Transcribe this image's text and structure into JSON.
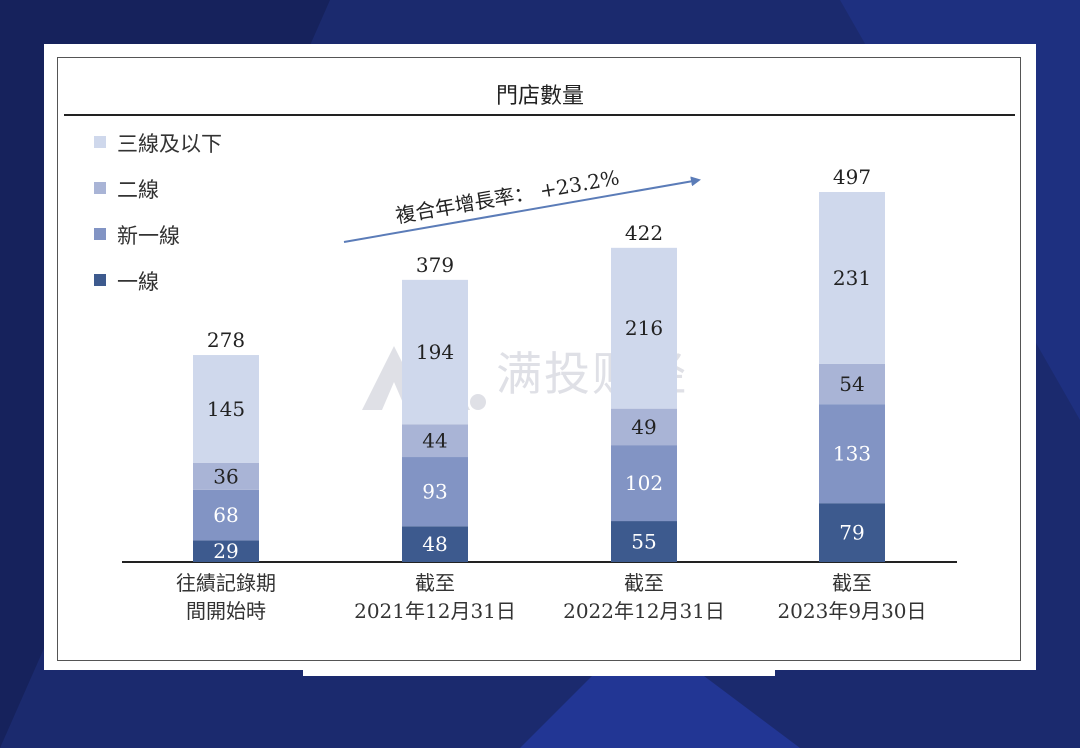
{
  "chart_data": {
    "type": "bar",
    "stacked": true,
    "title": "門店數量",
    "categories": [
      [
        "往績記錄期",
        "間開始時"
      ],
      [
        "截至",
        "2021年12月31日"
      ],
      [
        "截至",
        "2022年12月31日"
      ],
      [
        "截至",
        "2023年9月30日"
      ]
    ],
    "series": [
      {
        "name": "一線",
        "values": [
          29,
          48,
          55,
          79
        ],
        "color": "#3d5a8e"
      },
      {
        "name": "新一線",
        "values": [
          68,
          93,
          102,
          133
        ],
        "color": "#8294c4"
      },
      {
        "name": "二線",
        "values": [
          36,
          44,
          49,
          54
        ],
        "color": "#a9b4d6"
      },
      {
        "name": "三線及以下",
        "values": [
          145,
          194,
          216,
          231
        ],
        "color": "#cfd8ec"
      }
    ],
    "totals": [
      278,
      379,
      422,
      497
    ],
    "annotation": {
      "text": "複合年增長率： +23.2%",
      "color": "#5b7cb8"
    },
    "legend_order": [
      "三線及以下",
      "二線",
      "新一線",
      "一線"
    ],
    "legend_position": "top-left",
    "ylim": [
      0,
      497
    ]
  },
  "watermark": {
    "text": "满投财经",
    "color": "#dcdde4"
  }
}
